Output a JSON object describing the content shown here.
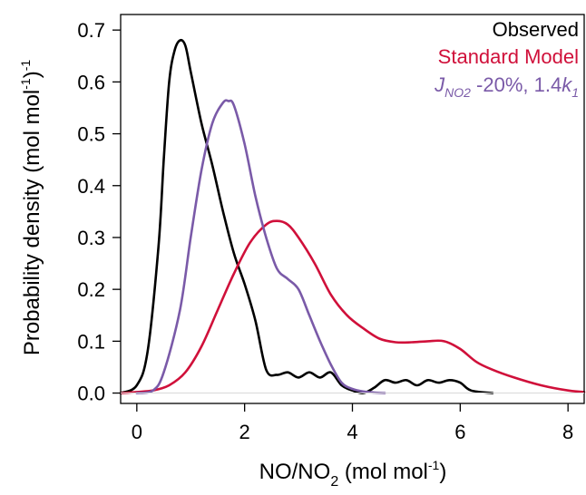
{
  "chart_data": {
    "type": "line",
    "title": "",
    "xlabel": {
      "text": "NO/NO",
      "sub": "2",
      "unit_pre": " (mol mol",
      "unit_sup": "-1",
      "unit_post": ")"
    },
    "ylabel": {
      "text": "Probability density (mol mol",
      "sup1": "-1",
      "mid": ")",
      "sup2": "-1"
    },
    "xlim": [
      -0.3,
      8.3
    ],
    "ylim": [
      -0.02,
      0.73
    ],
    "xticks": [
      0,
      2,
      4,
      6,
      8
    ],
    "xtick_labels": [
      "0",
      "2",
      "4",
      "6",
      "8"
    ],
    "yticks": [
      0.0,
      0.1,
      0.2,
      0.3,
      0.4,
      0.5,
      0.6,
      0.7
    ],
    "ytick_labels": [
      "0.0",
      "0.1",
      "0.2",
      "0.3",
      "0.4",
      "0.5",
      "0.6",
      "0.7"
    ],
    "grid": false,
    "legend_position": "top-right",
    "series": [
      {
        "name": "Observed",
        "color": "#000000",
        "x": [
          -0.3,
          0.0,
          0.2,
          0.4,
          0.5,
          0.6,
          0.7,
          0.8,
          0.9,
          1.0,
          1.2,
          1.4,
          1.6,
          1.8,
          2.0,
          2.2,
          2.4,
          2.6,
          2.8,
          3.0,
          3.2,
          3.4,
          3.6,
          3.8,
          4.0,
          4.2,
          4.4,
          4.6,
          4.8,
          5.0,
          5.2,
          5.4,
          5.6,
          5.8,
          6.0,
          6.2,
          6.6
        ],
        "y": [
          0.0,
          0.015,
          0.08,
          0.28,
          0.45,
          0.6,
          0.66,
          0.68,
          0.67,
          0.62,
          0.52,
          0.44,
          0.35,
          0.27,
          0.21,
          0.14,
          0.045,
          0.035,
          0.04,
          0.03,
          0.04,
          0.03,
          0.04,
          0.015,
          0.005,
          0.0,
          0.01,
          0.025,
          0.02,
          0.025,
          0.015,
          0.025,
          0.02,
          0.025,
          0.02,
          0.005,
          0.0
        ]
      },
      {
        "name": "Standard Model",
        "color": "#d0103a",
        "x": [
          -0.3,
          0.0,
          0.3,
          0.6,
          0.9,
          1.2,
          1.5,
          1.8,
          2.1,
          2.4,
          2.6,
          2.8,
          3.0,
          3.3,
          3.6,
          3.9,
          4.2,
          4.5,
          4.8,
          5.1,
          5.4,
          5.7,
          6.0,
          6.3,
          6.6,
          7.0,
          7.5,
          8.0,
          8.3
        ],
        "y": [
          0.0,
          0.002,
          0.005,
          0.015,
          0.04,
          0.09,
          0.16,
          0.23,
          0.29,
          0.325,
          0.332,
          0.325,
          0.3,
          0.25,
          0.19,
          0.15,
          0.125,
          0.105,
          0.098,
          0.098,
          0.1,
          0.1,
          0.085,
          0.06,
          0.045,
          0.03,
          0.015,
          0.005,
          0.002
        ]
      },
      {
        "name": "J_NO2 -20%, 1.4k_1",
        "color": "#7a5aa8",
        "x": [
          0.0,
          0.3,
          0.5,
          0.8,
          1.0,
          1.2,
          1.4,
          1.6,
          1.7,
          1.8,
          2.0,
          2.2,
          2.4,
          2.6,
          2.8,
          3.0,
          3.2,
          3.4,
          3.6,
          3.8,
          4.0,
          4.2,
          4.4,
          4.6
        ],
        "y": [
          0.0,
          0.005,
          0.04,
          0.16,
          0.3,
          0.43,
          0.52,
          0.56,
          0.563,
          0.555,
          0.48,
          0.38,
          0.3,
          0.24,
          0.22,
          0.2,
          0.15,
          0.1,
          0.055,
          0.02,
          0.008,
          0.003,
          0.001,
          0.0
        ]
      }
    ],
    "legend": [
      {
        "text": "Observed",
        "color": "#000000"
      },
      {
        "text": "Standard Model",
        "color": "#d0103a"
      },
      {
        "j": "J",
        "j_sub": "NO2",
        "rest": " -20%, 1.4",
        "k": "k",
        "k_sub": "1",
        "color": "#7a5aa8"
      }
    ]
  }
}
